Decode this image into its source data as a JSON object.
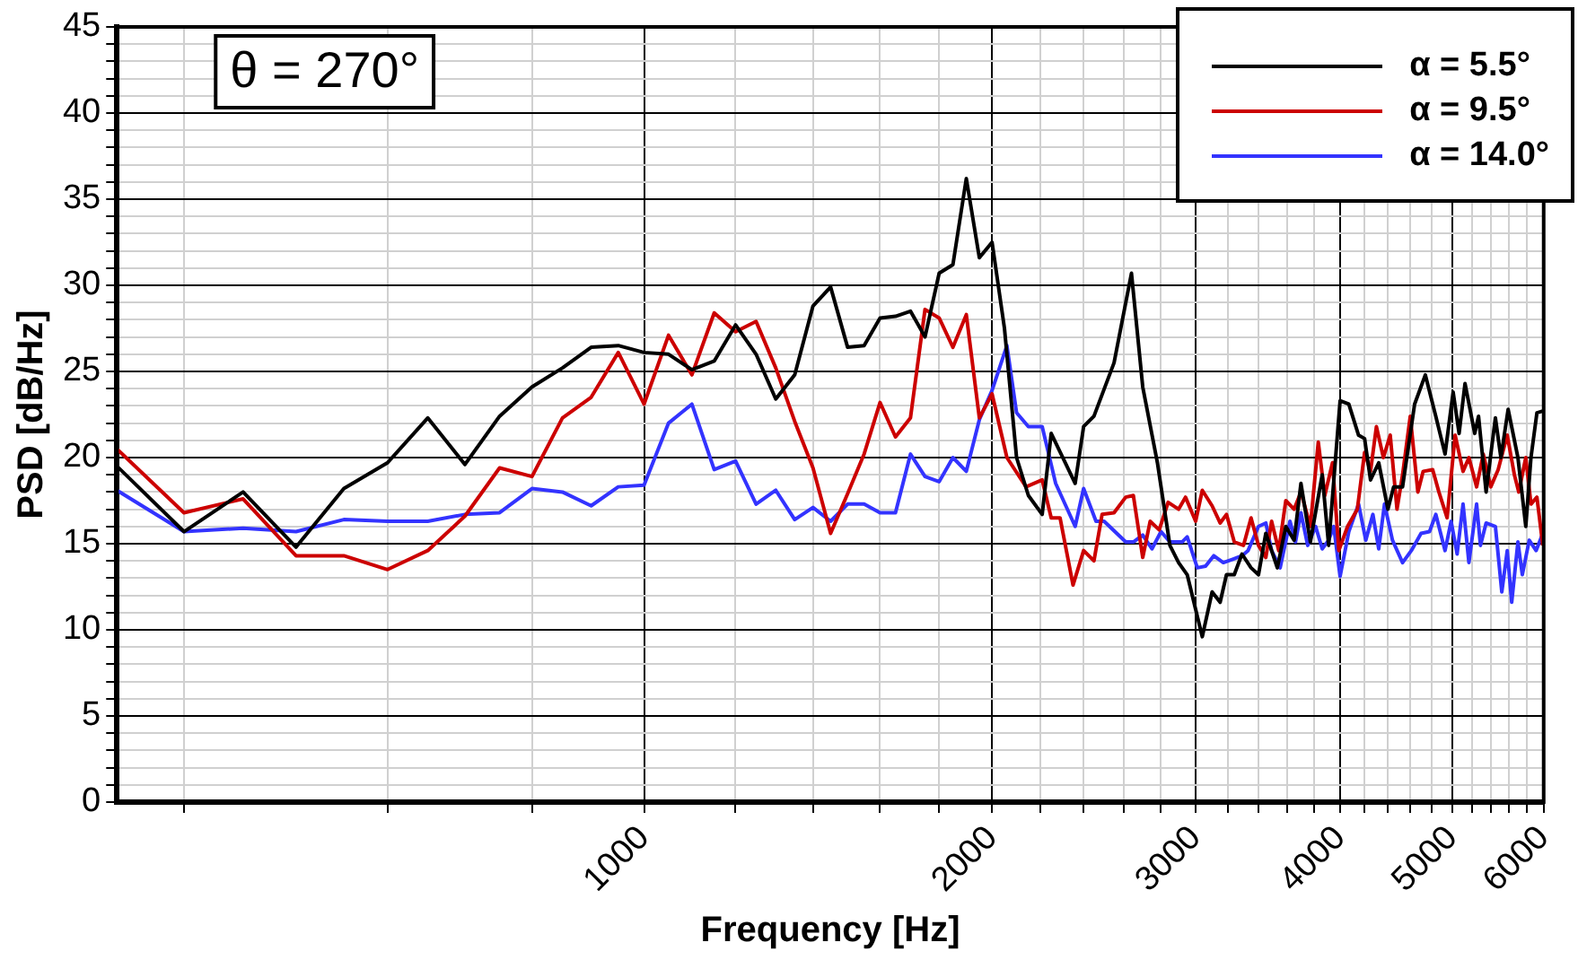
{
  "chart_data": {
    "type": "line",
    "xlabel": "Frequency [Hz]",
    "ylabel": "PSD [dB/Hz]",
    "annotations": [
      "θ = 270°"
    ],
    "log": "x",
    "grid": true,
    "legend": "top right",
    "xlim": [
      350,
      6000
    ],
    "ylim": [
      0,
      45
    ],
    "xticks": [
      {
        "value": 400,
        "label": null
      },
      {
        "value": 600,
        "label": null
      },
      {
        "value": 800,
        "label": null
      },
      1000,
      {
        "value": 1200,
        "label": null
      },
      {
        "value": 1400,
        "label": null
      },
      {
        "value": 1600,
        "label": null
      },
      {
        "value": 1800,
        "label": null
      },
      2000,
      {
        "value": 2200,
        "label": null
      },
      {
        "value": 2400,
        "label": null
      },
      {
        "value": 2600,
        "label": null
      },
      {
        "value": 2800,
        "label": null
      },
      3000,
      {
        "value": 3200,
        "label": null
      },
      {
        "value": 3400,
        "label": null
      },
      {
        "value": 3600,
        "label": null
      },
      {
        "value": 3800,
        "label": null
      },
      4000,
      {
        "value": 4200,
        "label": null
      },
      {
        "value": 4400,
        "label": null
      },
      {
        "value": 4600,
        "label": null
      },
      {
        "value": 4800,
        "label": null
      },
      5000,
      {
        "value": 5200,
        "label": null
      },
      {
        "value": 5400,
        "label": null
      },
      {
        "value": 5600,
        "label": null
      },
      {
        "value": 5800,
        "label": null
      },
      6000
    ],
    "yticks": [
      0,
      {
        "value": 1,
        "label": null
      },
      {
        "value": 2,
        "label": null
      },
      {
        "value": 3,
        "label": null
      },
      {
        "value": 4,
        "label": null
      },
      5,
      {
        "value": 6,
        "label": null
      },
      {
        "value": 7,
        "label": null
      },
      {
        "value": 8,
        "label": null
      },
      {
        "value": 9,
        "label": null
      },
      10,
      {
        "value": 11,
        "label": null
      },
      {
        "value": 12,
        "label": null
      },
      {
        "value": 13,
        "label": null
      },
      {
        "value": 14,
        "label": null
      },
      15,
      {
        "value": 16,
        "label": null
      },
      {
        "value": 17,
        "label": null
      },
      {
        "value": 18,
        "label": null
      },
      {
        "value": 19,
        "label": null
      },
      20,
      {
        "value": 21,
        "label": null
      },
      {
        "value": 22,
        "label": null
      },
      {
        "value": 23,
        "label": null
      },
      {
        "value": 24,
        "label": null
      },
      25,
      {
        "value": 26,
        "label": null
      },
      {
        "value": 27,
        "label": null
      },
      {
        "value": 28,
        "label": null
      },
      {
        "value": 29,
        "label": null
      },
      30,
      {
        "value": 31,
        "label": null
      },
      {
        "value": 32,
        "label": null
      },
      {
        "value": 33,
        "label": null
      },
      {
        "value": 34,
        "label": null
      },
      35,
      {
        "value": 36,
        "label": null
      },
      {
        "value": 37,
        "label": null
      },
      {
        "value": 38,
        "label": null
      },
      {
        "value": 39,
        "label": null
      },
      40,
      {
        "value": 41,
        "label": null
      },
      {
        "value": 42,
        "label": null
      },
      {
        "value": 43,
        "label": null
      },
      {
        "value": 44,
        "label": null
      },
      45
    ],
    "series": [
      {
        "name": "α = 5.5°",
        "color": "#000000",
        "x": [
          350,
          400,
          450,
          500,
          550,
          600,
          650,
          700,
          750,
          800,
          850,
          900,
          950,
          1000,
          1050,
          1100,
          1150,
          1200,
          1250,
          1300,
          1350,
          1400,
          1450,
          1500,
          1550,
          1600,
          1650,
          1700,
          1750,
          1800,
          1850,
          1900,
          1950,
          2000,
          2050,
          2100,
          2150,
          2210,
          2250,
          2360,
          2400,
          2450,
          2550,
          2640,
          2700,
          2780,
          2850,
          2900,
          2950,
          3040,
          3100,
          3150,
          3190,
          3240,
          3290,
          3350,
          3400,
          3450,
          3530,
          3590,
          3650,
          3700,
          3770,
          3860,
          3910,
          4000,
          4070,
          4150,
          4200,
          4250,
          4320,
          4400,
          4450,
          4530,
          4640,
          4740,
          4840,
          4930,
          5010,
          5070,
          5130,
          5230,
          5270,
          5350,
          5450,
          5510,
          5590,
          5700,
          5790,
          5850,
          5920,
          5990
        ],
        "values": [
          19.5,
          15.7,
          18.0,
          14.8,
          18.2,
          19.7,
          22.3,
          19.6,
          22.4,
          24.1,
          25.2,
          26.4,
          26.5,
          26.1,
          26.0,
          25.1,
          25.6,
          27.7,
          26.0,
          23.4,
          24.8,
          28.8,
          29.9,
          26.4,
          26.5,
          28.1,
          28.2,
          28.5,
          27.0,
          30.7,
          31.2,
          36.2,
          31.6,
          32.5,
          27.5,
          20.0,
          17.8,
          16.7,
          21.4,
          18.5,
          21.8,
          22.4,
          25.5,
          30.7,
          24.1,
          19.7,
          14.9,
          13.9,
          13.2,
          9.6,
          12.2,
          11.6,
          13.2,
          13.2,
          14.4,
          13.6,
          13.2,
          15.6,
          13.6,
          16.0,
          15.2,
          18.5,
          15.1,
          19.0,
          14.9,
          23.3,
          23.1,
          21.3,
          21.1,
          18.7,
          19.7,
          17.0,
          18.3,
          18.3,
          23.1,
          24.8,
          22.4,
          20.2,
          23.8,
          21.4,
          24.3,
          21.4,
          22.4,
          18.0,
          22.3,
          20.0,
          22.8,
          20.0,
          16.0,
          20.0,
          22.6,
          22.7
        ]
      },
      {
        "name": "α = 9.5°",
        "color": "#cc0000",
        "x": [
          350,
          400,
          450,
          500,
          550,
          600,
          650,
          700,
          750,
          800,
          850,
          900,
          950,
          1000,
          1050,
          1100,
          1150,
          1200,
          1250,
          1300,
          1350,
          1400,
          1450,
          1500,
          1550,
          1600,
          1650,
          1700,
          1750,
          1800,
          1850,
          1900,
          1950,
          2000,
          2060,
          2140,
          2210,
          2250,
          2290,
          2350,
          2400,
          2450,
          2490,
          2550,
          2610,
          2650,
          2700,
          2740,
          2790,
          2840,
          2900,
          2940,
          3000,
          3040,
          3100,
          3150,
          3190,
          3240,
          3300,
          3350,
          3400,
          3450,
          3490,
          3540,
          3590,
          3650,
          3700,
          3770,
          3830,
          3880,
          3940,
          3990,
          4060,
          4140,
          4200,
          4250,
          4300,
          4360,
          4420,
          4480,
          4530,
          4600,
          4670,
          4720,
          4810,
          4870,
          4950,
          5030,
          5110,
          5170,
          5250,
          5320,
          5400,
          5480,
          5580,
          5660,
          5710,
          5790,
          5850,
          5920,
          5990
        ],
        "values": [
          20.5,
          16.8,
          17.6,
          14.3,
          14.3,
          13.5,
          14.6,
          16.6,
          19.4,
          18.9,
          22.3,
          23.5,
          26.1,
          23.1,
          27.1,
          24.8,
          28.4,
          27.3,
          27.9,
          25.2,
          22.1,
          19.4,
          15.6,
          17.9,
          20.2,
          23.2,
          21.2,
          22.3,
          28.6,
          28.1,
          26.4,
          28.3,
          22.3,
          23.7,
          20.0,
          18.3,
          18.7,
          16.5,
          16.5,
          12.6,
          14.6,
          14.0,
          16.7,
          16.8,
          17.7,
          17.8,
          14.2,
          16.3,
          15.8,
          17.4,
          17.0,
          17.7,
          16.3,
          18.1,
          17.2,
          16.2,
          16.7,
          15.1,
          14.9,
          16.5,
          14.9,
          14.2,
          16.3,
          14.6,
          17.5,
          17.0,
          18.0,
          16.0,
          20.9,
          17.8,
          19.7,
          14.6,
          16.0,
          17.0,
          20.3,
          19.2,
          21.8,
          20.0,
          21.3,
          17.0,
          19.0,
          22.4,
          18.0,
          19.2,
          19.3,
          18.0,
          16.5,
          21.3,
          19.2,
          20.0,
          18.3,
          20.2,
          18.3,
          19.3,
          21.3,
          19.0,
          18.0,
          20.0,
          17.3,
          17.7,
          14.9
        ]
      },
      {
        "name": "α = 14.0°",
        "color": "#3333ff",
        "x": [
          350,
          400,
          450,
          500,
          550,
          600,
          650,
          700,
          750,
          800,
          850,
          900,
          950,
          1000,
          1050,
          1100,
          1150,
          1200,
          1250,
          1300,
          1350,
          1400,
          1450,
          1500,
          1550,
          1600,
          1650,
          1700,
          1750,
          1800,
          1850,
          1900,
          1950,
          2000,
          2060,
          2100,
          2150,
          2210,
          2270,
          2360,
          2400,
          2460,
          2500,
          2610,
          2650,
          2700,
          2750,
          2800,
          2850,
          2920,
          2950,
          3010,
          3060,
          3110,
          3170,
          3230,
          3290,
          3330,
          3400,
          3450,
          3490,
          3550,
          3620,
          3660,
          3700,
          3750,
          3810,
          3860,
          3910,
          3950,
          4000,
          4070,
          4150,
          4210,
          4270,
          4320,
          4370,
          4440,
          4530,
          4610,
          4700,
          4780,
          4840,
          4930,
          4990,
          5050,
          5110,
          5170,
          5250,
          5290,
          5350,
          5450,
          5520,
          5580,
          5630,
          5700,
          5750,
          5830,
          5910,
          5990
        ],
        "values": [
          18.1,
          15.7,
          15.9,
          15.7,
          16.4,
          16.3,
          16.3,
          16.7,
          16.8,
          18.2,
          18.0,
          17.2,
          18.3,
          18.4,
          22.0,
          23.1,
          19.3,
          19.8,
          17.3,
          18.1,
          16.4,
          17.1,
          16.3,
          17.3,
          17.3,
          16.8,
          16.8,
          20.2,
          18.9,
          18.6,
          20.0,
          19.2,
          22.2,
          23.9,
          26.5,
          22.6,
          21.8,
          21.8,
          18.5,
          16.0,
          18.2,
          16.3,
          16.3,
          15.1,
          15.1,
          15.5,
          14.7,
          15.7,
          15.1,
          15.1,
          15.4,
          13.6,
          13.7,
          14.3,
          13.9,
          14.1,
          14.3,
          14.6,
          16.0,
          16.2,
          14.6,
          13.6,
          16.3,
          15.1,
          16.8,
          14.9,
          16.0,
          14.7,
          15.2,
          16.0,
          13.1,
          15.7,
          17.3,
          15.2,
          16.7,
          14.7,
          17.3,
          15.2,
          13.9,
          14.6,
          15.6,
          15.7,
          16.7,
          14.6,
          16.3,
          14.4,
          17.3,
          13.9,
          17.3,
          14.9,
          16.2,
          16.0,
          12.2,
          14.6,
          11.6,
          15.1,
          13.2,
          15.2,
          14.6,
          15.6
        ]
      }
    ]
  }
}
